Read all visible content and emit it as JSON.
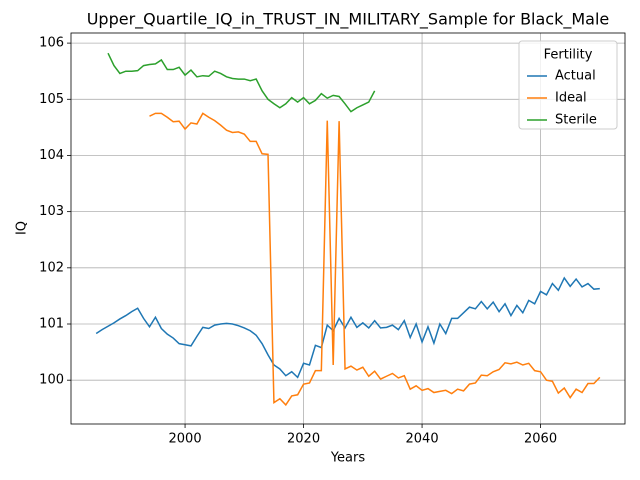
{
  "chart_data": {
    "type": "line",
    "title": "Upper_Quartile_IQ_in_TRUST_IN_MILITARY_Sample for Black_Male",
    "x_label": "Years",
    "y_label": "IQ",
    "x": [
      1985,
      1986,
      1987,
      1988,
      1989,
      1990,
      1991,
      1992,
      1993,
      1994,
      1995,
      1996,
      1997,
      1998,
      1999,
      2000,
      2001,
      2002,
      2003,
      2004,
      2005,
      2006,
      2007,
      2008,
      2009,
      2010,
      2011,
      2012,
      2013,
      2014,
      2015,
      2016,
      2017,
      2018,
      2019,
      2020,
      2021,
      2022,
      2023,
      2024,
      2025,
      2026,
      2027,
      2028,
      2029,
      2030,
      2031,
      2032,
      2033,
      2034,
      2035,
      2036,
      2037,
      2038,
      2039,
      2040,
      2041,
      2042,
      2043,
      2044,
      2045,
      2046,
      2047,
      2048,
      2049,
      2050,
      2051,
      2052,
      2053,
      2054,
      2055,
      2056,
      2057,
      2058,
      2059,
      2060,
      2061,
      2062,
      2063,
      2064,
      2065,
      2066,
      2067,
      2068,
      2069,
      2070
    ],
    "series": [
      {
        "name": "Actual",
        "color": "#1f77b4",
        "values": [
          100.83,
          100.9,
          100.96,
          101.02,
          101.09,
          101.15,
          101.22,
          101.28,
          101.1,
          100.95,
          101.12,
          100.92,
          100.82,
          100.75,
          100.65,
          100.63,
          100.61,
          100.78,
          100.94,
          100.92,
          100.98,
          101.0,
          101.01,
          101.0,
          100.97,
          100.93,
          100.88,
          100.8,
          100.65,
          100.45,
          100.27,
          100.2,
          100.08,
          100.15,
          100.05,
          100.3,
          100.27,
          100.62,
          100.58,
          100.98,
          100.88,
          101.1,
          100.93,
          101.12,
          100.94,
          101.02,
          100.93,
          101.06,
          100.93,
          100.94,
          100.98,
          100.9,
          101.06,
          100.76,
          101.0,
          100.68,
          100.95,
          100.66,
          101.0,
          100.83,
          101.1,
          101.1,
          101.2,
          101.3,
          101.27,
          101.4,
          101.27,
          101.39,
          101.22,
          101.36,
          101.15,
          101.33,
          101.2,
          101.42,
          101.36,
          101.58,
          101.52,
          101.72,
          101.6,
          101.82,
          101.67,
          101.8,
          101.66,
          101.72,
          101.62,
          101.63
        ]
      },
      {
        "name": "Ideal",
        "color": "#ff7f0e",
        "values": [
          null,
          null,
          null,
          null,
          null,
          null,
          null,
          null,
          null,
          104.7,
          104.75,
          104.75,
          104.68,
          104.6,
          104.61,
          104.47,
          104.58,
          104.56,
          104.75,
          104.68,
          104.62,
          104.54,
          104.45,
          104.41,
          104.42,
          104.38,
          104.25,
          104.25,
          104.03,
          104.02,
          99.6,
          99.67,
          99.56,
          99.72,
          99.74,
          99.93,
          99.95,
          100.17,
          100.17,
          104.62,
          100.27,
          104.61,
          100.2,
          100.25,
          100.18,
          100.23,
          100.07,
          100.16,
          100.02,
          100.07,
          100.12,
          100.04,
          100.08,
          99.84,
          99.9,
          99.82,
          99.85,
          99.78,
          99.8,
          99.82,
          99.76,
          99.84,
          99.81,
          99.93,
          99.95,
          100.09,
          100.08,
          100.15,
          100.19,
          100.31,
          100.29,
          100.32,
          100.27,
          100.3,
          100.17,
          100.15,
          100.0,
          99.98,
          99.77,
          99.86,
          99.69,
          99.84,
          99.78,
          99.94,
          99.94,
          100.05
        ]
      },
      {
        "name": "Sterile",
        "color": "#2ca02c",
        "values": [
          null,
          null,
          105.82,
          105.6,
          105.46,
          105.5,
          105.5,
          105.51,
          105.6,
          105.62,
          105.63,
          105.7,
          105.53,
          105.53,
          105.57,
          105.43,
          105.52,
          105.4,
          105.42,
          105.41,
          105.5,
          105.46,
          105.4,
          105.37,
          105.36,
          105.36,
          105.33,
          105.36,
          105.15,
          105.0,
          104.92,
          104.85,
          104.92,
          105.03,
          104.95,
          105.03,
          104.92,
          104.98,
          105.1,
          105.02,
          105.07,
          105.05,
          104.92,
          104.78,
          104.85,
          104.9,
          104.95,
          105.15,
          null,
          null,
          null,
          null,
          null,
          null,
          null,
          null,
          null,
          null,
          null,
          null,
          null,
          null,
          null,
          null,
          null,
          null,
          null,
          null,
          null,
          null,
          null,
          null,
          null,
          null,
          null,
          null,
          null,
          null,
          null,
          null,
          null,
          null,
          null,
          null,
          null,
          null
        ]
      }
    ],
    "xlim": [
      1980.75,
      2074.25
    ],
    "xticks": [
      2000,
      2020,
      2040,
      2060
    ],
    "ylim": [
      99.22,
      106.18
    ],
    "yticks": [
      100,
      101,
      102,
      103,
      104,
      105,
      106
    ],
    "grid": true,
    "legend_title": "Fertility",
    "legend_position": "upper right"
  }
}
